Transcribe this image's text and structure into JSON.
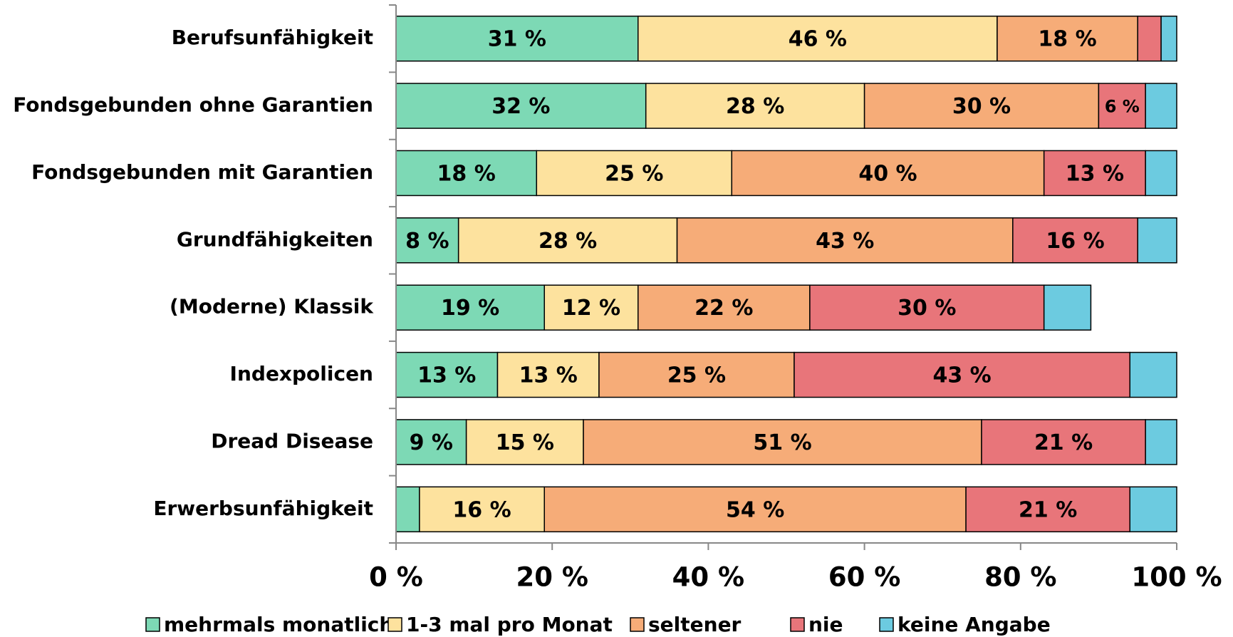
{
  "chart_data": {
    "type": "stacked_barh",
    "categories": [
      "Berufsunfähigkeit",
      "Fondsgebunden ohne Garantien",
      "Fondsgebunden mit Garantien",
      "Grundfähigkeiten",
      "(Moderne) Klassik",
      "Indexpolicen",
      "Dread Disease",
      "Erwerbsunfähigkeit"
    ],
    "series": [
      {
        "name": "mehrmals monatlich",
        "color": "#7dd9b5",
        "values": [
          31,
          32,
          18,
          8,
          19,
          13,
          9,
          3
        ],
        "value_labels": [
          "31 %",
          "32 %",
          "18 %",
          "8 %",
          "19 %",
          "13 %",
          "9 %",
          null
        ]
      },
      {
        "name": "1-3 mal pro Monat",
        "color": "#fde29e",
        "values": [
          46,
          28,
          25,
          28,
          12,
          13,
          15,
          16
        ],
        "value_labels": [
          "46 %",
          "28 %",
          "25 %",
          "28 %",
          "12 %",
          "13 %",
          "15 %",
          "16 %"
        ]
      },
      {
        "name": "seltener",
        "color": "#f6ac78",
        "values": [
          18,
          30,
          40,
          43,
          22,
          25,
          51,
          54
        ],
        "value_labels": [
          "18 %",
          "30 %",
          "40 %",
          "43 %",
          "22 %",
          "25 %",
          "51 %",
          "54 %"
        ]
      },
      {
        "name": "nie",
        "color": "#e8757a",
        "values": [
          3,
          6,
          13,
          16,
          30,
          43,
          21,
          21
        ],
        "value_labels": [
          null,
          "6 %",
          "13 %",
          "16 %",
          "30 %",
          "43 %",
          "21 %",
          "21 %"
        ]
      },
      {
        "name": "keine Angabe",
        "color": "#6ccbe0",
        "values": [
          2,
          4,
          4,
          5,
          6,
          6,
          4,
          6
        ],
        "value_labels": [
          null,
          null,
          null,
          null,
          null,
          null,
          null,
          null
        ]
      }
    ],
    "xlim": [
      0,
      100
    ],
    "xticks": [
      {
        "value": 0,
        "label": "0 %"
      },
      {
        "value": 20,
        "label": "20 %"
      },
      {
        "value": 40,
        "label": "40 %"
      },
      {
        "value": 60,
        "label": "60 %"
      },
      {
        "value": 80,
        "label": "80 %"
      },
      {
        "value": 100,
        "label": "100 %"
      }
    ],
    "legend": "bottom"
  }
}
